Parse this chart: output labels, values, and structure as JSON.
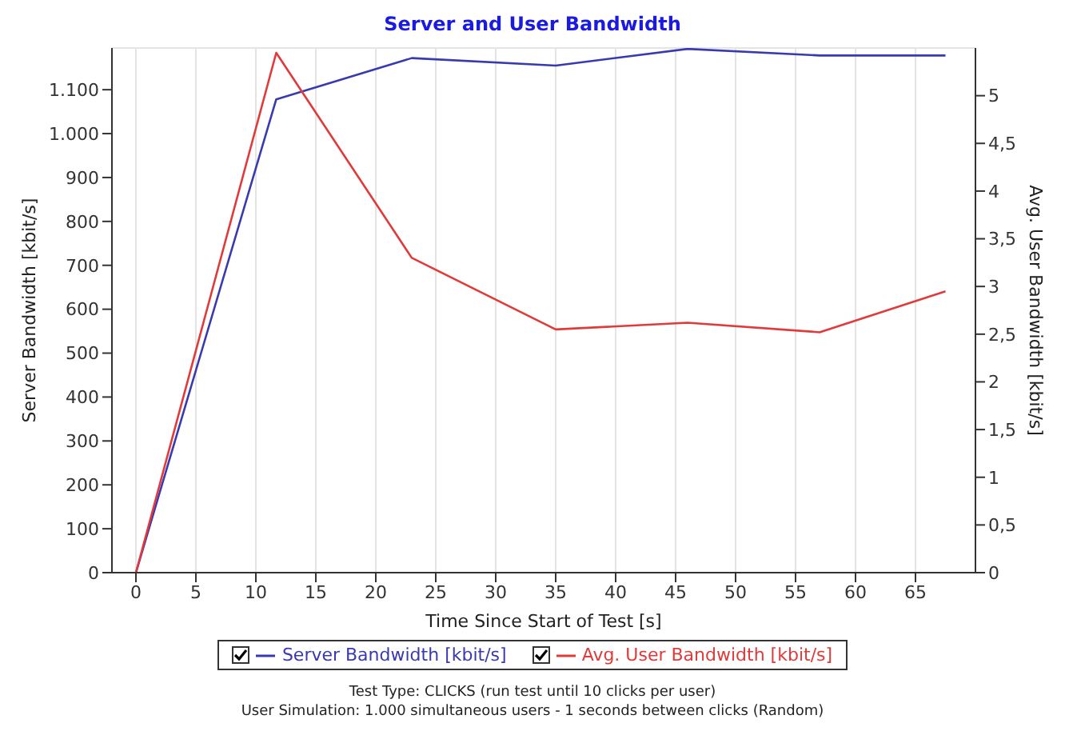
{
  "chart_data": {
    "type": "line",
    "title": "Server and User Bandwidth",
    "xlabel": "Time Since Start of Test [s]",
    "ylabel": "Server Bandwidth [kbit/s]",
    "y2label": "Avg. User Bandwidth [kbit/s]",
    "series": [
      {
        "name": "Server Bandwidth [kbit/s]",
        "color": "#3a3ab0",
        "x": [
          0,
          11.7,
          23,
          35,
          46,
          57,
          67.5
        ],
        "values": [
          0,
          1078,
          1172,
          1155,
          1193,
          1178,
          1178
        ]
      },
      {
        "name": "Avg. User Bandwidth [kbit/s]",
        "color": "#e03a3a",
        "axis": "y2",
        "x": [
          0,
          11.7,
          23,
          35,
          46,
          57,
          67.5
        ],
        "values": [
          0,
          5.45,
          3.3,
          2.55,
          2.62,
          2.52,
          2.95
        ]
      }
    ],
    "xlim": [
      -2,
      70
    ],
    "xticks": [
      0,
      5,
      10,
      15,
      20,
      25,
      30,
      35,
      40,
      45,
      50,
      55,
      60,
      65
    ],
    "ylim": [
      0,
      1195
    ],
    "yticks": [
      0,
      100,
      200,
      300,
      400,
      500,
      600,
      700,
      800,
      900,
      {
        "value": 1000,
        "label": "1.000"
      },
      {
        "value": 1100,
        "label": "1.100"
      }
    ],
    "y2lim": [
      0,
      5.5
    ],
    "y2ticks": [
      0,
      {
        "value": 0.5,
        "label": "0,5"
      },
      1,
      {
        "value": 1.5,
        "label": "1,5"
      },
      2,
      {
        "value": 2.5,
        "label": "2,5"
      },
      3,
      {
        "value": 3.5,
        "label": "3,5"
      },
      4,
      {
        "value": 4.5,
        "label": "4,5"
      },
      5
    ],
    "grid": true,
    "legend": "bottom",
    "marker": "none",
    "line_style": "solid",
    "annotations": [
      "Test Type: CLICKS (run test until 10 clicks per user)",
      "User Simulation: 1.000 simultaneous users - 1 seconds between clicks (Random)"
    ]
  }
}
